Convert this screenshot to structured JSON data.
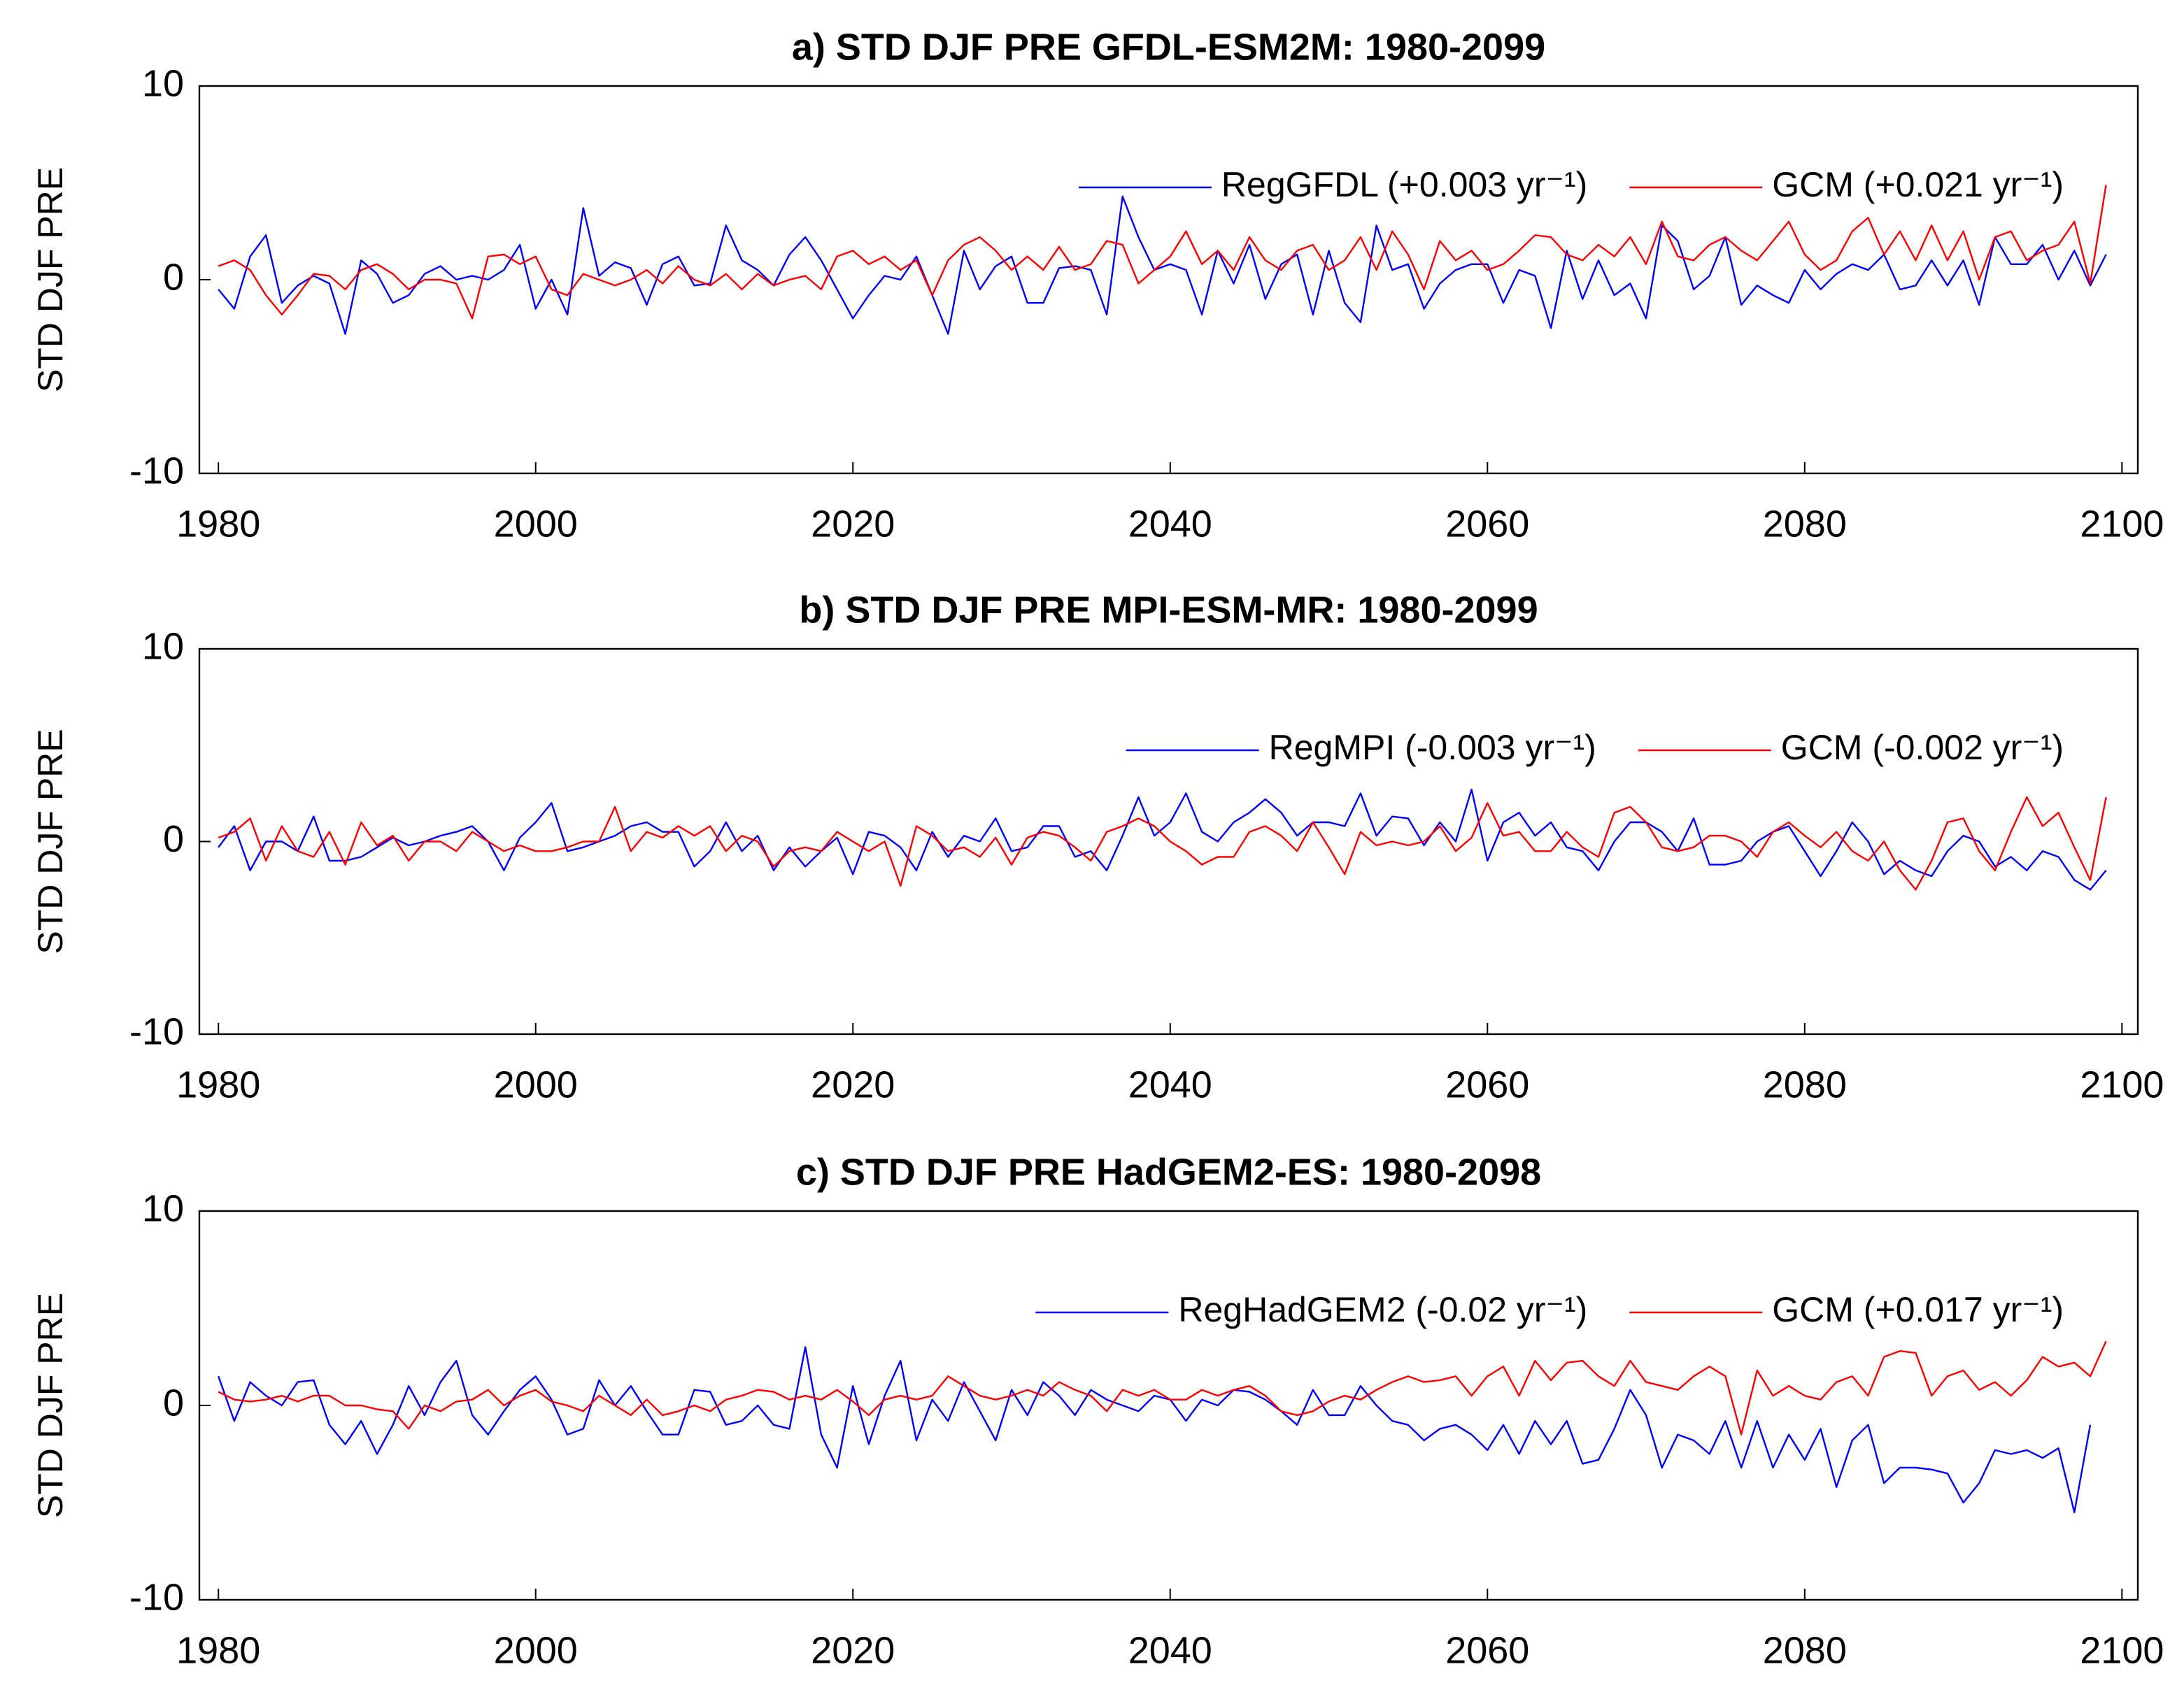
{
  "chart_data": [
    {
      "type": "line",
      "title": "a) STD DJF PRE GFDL-ESM2M: 1980-2099",
      "ylabel": "STD DJF PRE",
      "x": [
        1980,
        1981,
        1982,
        1983,
        1984,
        1985,
        1986,
        1987,
        1988,
        1989,
        1990,
        1991,
        1992,
        1993,
        1994,
        1995,
        1996,
        1997,
        1998,
        1999,
        2000,
        2001,
        2002,
        2003,
        2004,
        2005,
        2006,
        2007,
        2008,
        2009,
        2010,
        2011,
        2012,
        2013,
        2014,
        2015,
        2016,
        2017,
        2018,
        2019,
        2020,
        2021,
        2022,
        2023,
        2024,
        2025,
        2026,
        2027,
        2028,
        2029,
        2030,
        2031,
        2032,
        2033,
        2034,
        2035,
        2036,
        2037,
        2038,
        2039,
        2040,
        2041,
        2042,
        2043,
        2044,
        2045,
        2046,
        2047,
        2048,
        2049,
        2050,
        2051,
        2052,
        2053,
        2054,
        2055,
        2056,
        2057,
        2058,
        2059,
        2060,
        2061,
        2062,
        2063,
        2064,
        2065,
        2066,
        2067,
        2068,
        2069,
        2070,
        2071,
        2072,
        2073,
        2074,
        2075,
        2076,
        2077,
        2078,
        2079,
        2080,
        2081,
        2082,
        2083,
        2084,
        2085,
        2086,
        2087,
        2088,
        2089,
        2090,
        2091,
        2092,
        2093,
        2094,
        2095,
        2096,
        2097,
        2098,
        2099
      ],
      "series": [
        {
          "name": "RegGFDL (+0.003 yr⁻¹)",
          "color": "#0000ff",
          "values": [
            -0.5,
            -1.5,
            1.2,
            2.3,
            -1.2,
            -0.3,
            0.2,
            -0.2,
            -2.8,
            1.0,
            0.3,
            -1.2,
            -0.8,
            0.3,
            0.7,
            0,
            0.2,
            0,
            0.5,
            1.8,
            -1.5,
            0,
            -1.8,
            3.7,
            0.2,
            0.9,
            0.6,
            -1.3,
            0.8,
            1.2,
            -0.3,
            -0.2,
            2.8,
            1.0,
            0.5,
            -0.3,
            1.3,
            2.2,
            1.0,
            -0.5,
            -2.0,
            -0.8,
            0.2,
            0,
            1.2,
            -0.8,
            -2.8,
            1.5,
            -0.5,
            0.7,
            1.2,
            -1.2,
            -1.2,
            0.6,
            0.7,
            0.5,
            -1.8,
            4.3,
            2.2,
            0.5,
            0.8,
            0.5,
            -1.8,
            1.5,
            -0.2,
            1.8,
            -1.0,
            0.8,
            1.3,
            -1.8,
            1.5,
            -1.2,
            -2.2,
            2.8,
            0.5,
            0.8,
            -1.5,
            -0.2,
            0.5,
            0.8,
            0.8,
            -1.2,
            0.5,
            0.2,
            -2.5,
            1.5,
            -1.0,
            1.0,
            -0.8,
            -0.2,
            -2.0,
            2.8,
            2.0,
            -0.5,
            0.2,
            2.2,
            -1.3,
            -0.3,
            -0.8,
            -1.2,
            0.5,
            -0.5,
            0.3,
            0.8,
            0.5,
            1.3,
            -0.5,
            -0.3,
            1.0,
            -0.3,
            1.0,
            -1.3,
            2.2,
            0.8,
            0.8,
            1.8,
            0,
            1.5,
            -0.3,
            1.3
          ]
        },
        {
          "name": "GCM (+0.021 yr⁻¹)",
          "color": "#ff0000",
          "values": [
            0.7,
            1.0,
            0.5,
            -0.8,
            -1.8,
            -0.8,
            0.3,
            0.2,
            -0.5,
            0.5,
            0.8,
            0.3,
            -0.5,
            0,
            0,
            -0.2,
            -2.0,
            1.2,
            1.3,
            0.8,
            1.2,
            -0.5,
            -0.8,
            0.3,
            0,
            -0.3,
            0,
            0.5,
            -0.2,
            0.7,
            0,
            -0.3,
            0.3,
            -0.5,
            0.3,
            -0.3,
            0,
            0.2,
            -0.5,
            1.2,
            1.5,
            0.8,
            1.2,
            0.5,
            1.0,
            -0.8,
            1.0,
            1.8,
            2.2,
            1.5,
            0.5,
            1.2,
            0.5,
            1.7,
            0.5,
            0.8,
            2.0,
            1.8,
            -0.2,
            0.5,
            1.2,
            2.5,
            0.8,
            1.5,
            0.5,
            2.2,
            1.0,
            0.5,
            1.5,
            1.8,
            0.5,
            1.0,
            2.2,
            0.5,
            2.5,
            1.3,
            -0.5,
            2.0,
            1.0,
            1.5,
            0.5,
            0.8,
            1.5,
            2.3,
            2.2,
            1.3,
            1.0,
            1.8,
            1.2,
            2.2,
            0.8,
            3.0,
            1.2,
            1.0,
            1.8,
            2.2,
            1.5,
            1.0,
            2.0,
            3.0,
            1.3,
            0.5,
            1.0,
            2.5,
            3.2,
            1.3,
            2.5,
            1.0,
            2.8,
            1.0,
            2.5,
            0,
            2.2,
            2.5,
            1.0,
            1.5,
            1.8,
            3.0,
            -0.2,
            4.9
          ]
        }
      ],
      "xlim": [
        1978.8,
        2101
      ],
      "ylim": [
        -10,
        10
      ],
      "xticks": [
        1980,
        2000,
        2020,
        2040,
        2060,
        2080,
        2100
      ],
      "yticks": [
        -10,
        0,
        10
      ],
      "grid": false
    },
    {
      "type": "line",
      "title": "b) STD DJF PRE MPI-ESM-MR: 1980-2099",
      "ylabel": "STD DJF PRE",
      "x": [
        1980,
        1981,
        1982,
        1983,
        1984,
        1985,
        1986,
        1987,
        1988,
        1989,
        1990,
        1991,
        1992,
        1993,
        1994,
        1995,
        1996,
        1997,
        1998,
        1999,
        2000,
        2001,
        2002,
        2003,
        2004,
        2005,
        2006,
        2007,
        2008,
        2009,
        2010,
        2011,
        2012,
        2013,
        2014,
        2015,
        2016,
        2017,
        2018,
        2019,
        2020,
        2021,
        2022,
        2023,
        2024,
        2025,
        2026,
        2027,
        2028,
        2029,
        2030,
        2031,
        2032,
        2033,
        2034,
        2035,
        2036,
        2037,
        2038,
        2039,
        2040,
        2041,
        2042,
        2043,
        2044,
        2045,
        2046,
        2047,
        2048,
        2049,
        2050,
        2051,
        2052,
        2053,
        2054,
        2055,
        2056,
        2057,
        2058,
        2059,
        2060,
        2061,
        2062,
        2063,
        2064,
        2065,
        2066,
        2067,
        2068,
        2069,
        2070,
        2071,
        2072,
        2073,
        2074,
        2075,
        2076,
        2077,
        2078,
        2079,
        2080,
        2081,
        2082,
        2083,
        2084,
        2085,
        2086,
        2087,
        2088,
        2089,
        2090,
        2091,
        2092,
        2093,
        2094,
        2095,
        2096,
        2097,
        2098,
        2099
      ],
      "series": [
        {
          "name": "RegMPI (-0.003 yr⁻¹)",
          "color": "#0000ff",
          "values": [
            -0.3,
            0.8,
            -1.5,
            0,
            0,
            -0.5,
            1.3,
            -1.0,
            -1.0,
            -0.8,
            -0.3,
            0.2,
            -0.2,
            0,
            0.3,
            0.5,
            0.8,
            0,
            -1.5,
            0.2,
            1.0,
            2.0,
            -0.5,
            -0.3,
            0,
            0.3,
            0.8,
            1.0,
            0.5,
            0.5,
            -1.3,
            -0.5,
            1.0,
            -0.5,
            0.3,
            -1.5,
            -0.3,
            -1.3,
            -0.5,
            0.2,
            -1.7,
            0.5,
            0.3,
            -0.3,
            -1.5,
            0.5,
            -0.8,
            0.3,
            0,
            1.2,
            -0.5,
            -0.3,
            0.8,
            0.8,
            -0.8,
            -0.5,
            -1.5,
            0.3,
            2.3,
            0.3,
            1.0,
            2.5,
            0.5,
            0,
            1.0,
            1.5,
            2.2,
            1.5,
            0.3,
            1.0,
            1.0,
            0.8,
            2.5,
            0.3,
            1.3,
            1.2,
            -0.2,
            1.0,
            0,
            2.7,
            -1.0,
            1.0,
            1.5,
            0.3,
            1.0,
            -0.3,
            -0.5,
            -1.5,
            0,
            1.0,
            1.0,
            0.5,
            -0.5,
            1.2,
            -1.2,
            -1.2,
            -1.0,
            0,
            0.5,
            0.8,
            -0.5,
            -1.8,
            -0.5,
            1.0,
            0,
            -1.7,
            -1.0,
            -1.5,
            -1.8,
            -0.5,
            0.3,
            0,
            -1.3,
            -0.8,
            -1.5,
            -0.5,
            -0.8,
            -2.0,
            -2.5,
            -1.5
          ]
        },
        {
          "name": "GCM (-0.002 yr⁻¹)",
          "color": "#ff0000",
          "values": [
            0.2,
            0.5,
            1.2,
            -1.0,
            0.8,
            -0.5,
            -0.8,
            0.5,
            -1.2,
            1.0,
            -0.2,
            0.3,
            -1.0,
            0,
            0,
            -0.5,
            0.5,
            0,
            -0.5,
            -0.2,
            -0.5,
            -0.5,
            -0.3,
            0,
            0,
            1.8,
            -0.5,
            0.5,
            0.2,
            0.8,
            0.3,
            0.8,
            -0.5,
            0.3,
            0,
            -1.3,
            -0.5,
            -0.3,
            -0.5,
            0.5,
            0,
            -0.5,
            0,
            -2.3,
            0.8,
            0.3,
            -0.5,
            -0.3,
            -0.8,
            0.2,
            -1.2,
            0.2,
            0.5,
            0.3,
            -0.3,
            -1.0,
            0.5,
            0.8,
            1.2,
            0.8,
            0,
            -0.5,
            -1.2,
            -0.8,
            -0.8,
            0.5,
            0.8,
            0.3,
            -0.5,
            1.0,
            -0.3,
            -1.7,
            0.5,
            -0.2,
            0,
            -0.2,
            0,
            0.8,
            -0.5,
            0.2,
            2.0,
            0.3,
            0.5,
            -0.5,
            -0.5,
            0.5,
            -0.3,
            -0.8,
            1.5,
            1.8,
            1.0,
            -0.3,
            -0.5,
            -0.3,
            0.3,
            0.3,
            0,
            -0.8,
            0.5,
            1.0,
            0.3,
            -0.3,
            0.5,
            -0.5,
            -1.0,
            0,
            -1.5,
            -2.5,
            -1.0,
            1.0,
            1.2,
            -0.5,
            -1.5,
            0.5,
            2.3,
            0.8,
            1.5,
            -0.3,
            -2.0,
            2.3
          ]
        }
      ],
      "xlim": [
        1978.8,
        2101
      ],
      "ylim": [
        -10,
        10
      ],
      "xticks": [
        1980,
        2000,
        2020,
        2040,
        2060,
        2080,
        2100
      ],
      "yticks": [
        -10,
        0,
        10
      ],
      "grid": false
    },
    {
      "type": "line",
      "title": "c) STD DJF PRE HadGEM2-ES: 1980-2098",
      "ylabel": "STD DJF PRE",
      "x": [
        1980,
        1981,
        1982,
        1983,
        1984,
        1985,
        1986,
        1987,
        1988,
        1989,
        1990,
        1991,
        1992,
        1993,
        1994,
        1995,
        1996,
        1997,
        1998,
        1999,
        2000,
        2001,
        2002,
        2003,
        2004,
        2005,
        2006,
        2007,
        2008,
        2009,
        2010,
        2011,
        2012,
        2013,
        2014,
        2015,
        2016,
        2017,
        2018,
        2019,
        2020,
        2021,
        2022,
        2023,
        2024,
        2025,
        2026,
        2027,
        2028,
        2029,
        2030,
        2031,
        2032,
        2033,
        2034,
        2035,
        2036,
        2037,
        2038,
        2039,
        2040,
        2041,
        2042,
        2043,
        2044,
        2045,
        2046,
        2047,
        2048,
        2049,
        2050,
        2051,
        2052,
        2053,
        2054,
        2055,
        2056,
        2057,
        2058,
        2059,
        2060,
        2061,
        2062,
        2063,
        2064,
        2065,
        2066,
        2067,
        2068,
        2069,
        2070,
        2071,
        2072,
        2073,
        2074,
        2075,
        2076,
        2077,
        2078,
        2079,
        2080,
        2081,
        2082,
        2083,
        2084,
        2085,
        2086,
        2087,
        2088,
        2089,
        2090,
        2091,
        2092,
        2093,
        2094,
        2095,
        2096,
        2097,
        2098,
        2099
      ],
      "series": [
        {
          "name": "RegHadGEM2 (-0.02 yr⁻¹)",
          "color": "#0000ff",
          "values": [
            1.5,
            -0.8,
            1.2,
            0.5,
            0,
            1.2,
            1.3,
            -1.0,
            -2.0,
            -0.8,
            -2.5,
            -1.0,
            1.0,
            -0.5,
            1.2,
            2.3,
            -0.5,
            -1.5,
            -0.3,
            0.8,
            1.5,
            0.3,
            -1.5,
            -1.2,
            1.3,
            0,
            1.0,
            -0.3,
            -1.5,
            -1.5,
            0.8,
            0.7,
            -1.0,
            -0.8,
            0,
            -1.0,
            -1.2,
            3.0,
            -1.5,
            -3.2,
            1.0,
            -2.0,
            0.5,
            2.3,
            -1.8,
            0.3,
            -0.8,
            1.2,
            -0.3,
            -1.8,
            0.8,
            -0.5,
            1.2,
            0.5,
            -0.5,
            0.8,
            0.3,
            0,
            -0.3,
            0.5,
            0.3,
            -0.8,
            0.3,
            0,
            0.8,
            0.7,
            0.3,
            -0.3,
            -1.0,
            0.8,
            -0.5,
            -0.5,
            1.0,
            0,
            -0.8,
            -1.0,
            -1.8,
            -1.2,
            -1.0,
            -1.5,
            -2.3,
            -1.0,
            -2.5,
            -0.8,
            -2.0,
            -0.8,
            -3.0,
            -2.8,
            -1.2,
            0.8,
            -0.5,
            -3.2,
            -1.5,
            -1.8,
            -2.5,
            -0.8,
            -3.2,
            -0.8,
            -3.2,
            -1.5,
            -2.8,
            -1.2,
            -4.2,
            -1.8,
            -1.0,
            -4.0,
            -3.2,
            -3.2,
            -3.3,
            -3.5,
            -5.0,
            -4.0,
            -2.3,
            -2.5,
            -2.3,
            -2.7,
            -2.2,
            -5.5,
            -1.0,
            null
          ]
        },
        {
          "name": "GCM (+0.017 yr⁻¹)",
          "color": "#ff0000",
          "values": [
            0.7,
            0.3,
            0.2,
            0.3,
            0.5,
            0.2,
            0.5,
            0.5,
            0,
            0,
            -0.2,
            -0.3,
            -1.2,
            0,
            -0.3,
            0.2,
            0.3,
            0.8,
            0,
            0.5,
            0.8,
            0.2,
            0,
            -0.3,
            0.5,
            0,
            -0.5,
            0.3,
            -0.5,
            -0.3,
            0,
            -0.3,
            0.3,
            0.5,
            0.8,
            0.7,
            0.3,
            0.5,
            0.3,
            0.8,
            0.2,
            -0.5,
            0.3,
            0.5,
            0.3,
            0.5,
            1.5,
            1.0,
            0.5,
            0.3,
            0.5,
            0.8,
            0.5,
            1.2,
            0.8,
            0.5,
            -0.3,
            0.8,
            0.5,
            0.8,
            0.3,
            0.3,
            0.8,
            0.5,
            0.8,
            1.0,
            0.5,
            -0.3,
            -0.5,
            -0.3,
            0.2,
            0.5,
            0.3,
            0.8,
            1.2,
            1.5,
            1.2,
            1.3,
            1.5,
            0.5,
            1.5,
            2.0,
            0.5,
            2.3,
            1.3,
            2.2,
            2.3,
            1.5,
            1.0,
            2.3,
            1.2,
            1.0,
            0.8,
            1.5,
            2.0,
            1.5,
            -1.5,
            1.8,
            0.5,
            1.0,
            0.5,
            0.3,
            1.2,
            1.5,
            0.5,
            2.5,
            2.8,
            2.7,
            0.5,
            1.5,
            1.8,
            0.8,
            1.2,
            0.5,
            1.3,
            2.5,
            2.0,
            2.2,
            1.5,
            3.3
          ]
        }
      ],
      "xlim": [
        1978.8,
        2101
      ],
      "ylim": [
        -10,
        10
      ],
      "xticks": [
        1980,
        2000,
        2020,
        2040,
        2060,
        2080,
        2100
      ],
      "yticks": [
        -10,
        0,
        10
      ],
      "grid": false
    }
  ]
}
